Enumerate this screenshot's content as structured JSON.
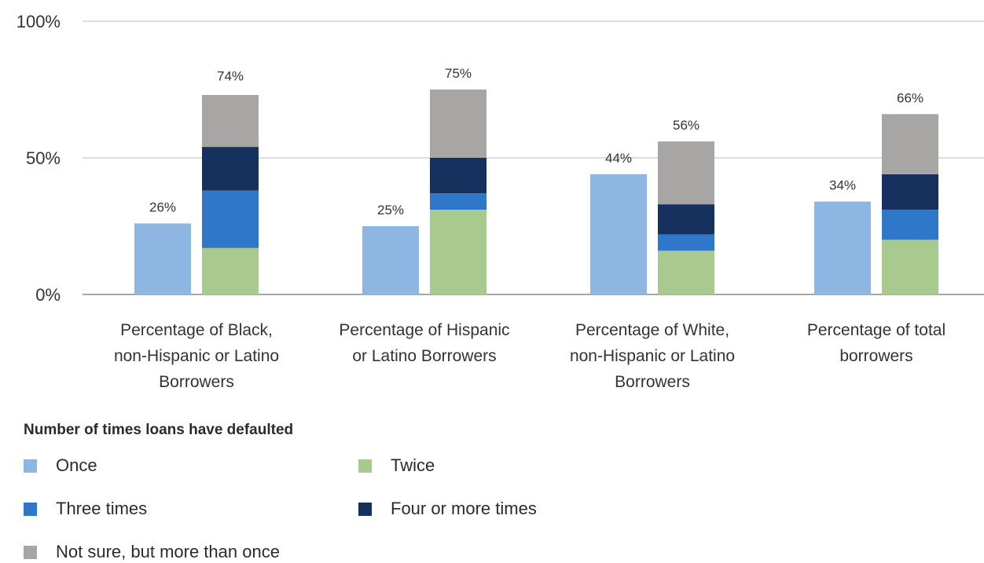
{
  "chart_data": {
    "type": "bar",
    "stacked_groups": true,
    "ylim": [
      0,
      100
    ],
    "yticks": [
      "0%",
      "50%",
      "100%"
    ],
    "ytick_values": [
      0,
      50,
      100
    ],
    "grid": true,
    "legend_placement": "bottom-left",
    "legend_title": "Number of times loans have defaulted",
    "series": [
      {
        "name": "Once",
        "color": "#8db6e3"
      },
      {
        "name": "Twice",
        "color": "#a8ca8e"
      },
      {
        "name": "Three times",
        "color": "#2f78c9"
      },
      {
        "name": "Four or more times",
        "color": "#17315f"
      },
      {
        "name": "Not sure, but more than once",
        "color": "#a8a5a5"
      }
    ],
    "categories": [
      {
        "label_lines": [
          "Percentage of Black,",
          "non-Hispanic or Latino",
          "Borrowers"
        ],
        "once": 26,
        "once_label": "26%",
        "stack": {
          "Twice": 17,
          "Three times": 21,
          "Four or more times": 16,
          "Not sure, but more than once": 19
        },
        "stack_total_label": "74%",
        "stack_total": 74
      },
      {
        "label_lines": [
          "Percentage of Hispanic",
          "or Latino Borrowers"
        ],
        "once": 25,
        "once_label": "25%",
        "stack": {
          "Twice": 31,
          "Three times": 6,
          "Four or more times": 13,
          "Not sure, but more than once": 25
        },
        "stack_total_label": "75%",
        "stack_total": 75
      },
      {
        "label_lines": [
          "Percentage of White,",
          "non-Hispanic or Latino",
          "Borrowers"
        ],
        "once": 44,
        "once_label": "44%",
        "stack": {
          "Twice": 16,
          "Three times": 6,
          "Four or more times": 11,
          "Not sure, but more than once": 23
        },
        "stack_total_label": "56%",
        "stack_total": 56
      },
      {
        "label_lines": [
          "Percentage of total",
          "borrowers"
        ],
        "once": 34,
        "once_label": "34%",
        "stack": {
          "Twice": 20,
          "Three times": 11,
          "Four or more times": 13,
          "Not sure, but more than once": 22
        },
        "stack_total_label": "66%",
        "stack_total": 66
      }
    ]
  }
}
